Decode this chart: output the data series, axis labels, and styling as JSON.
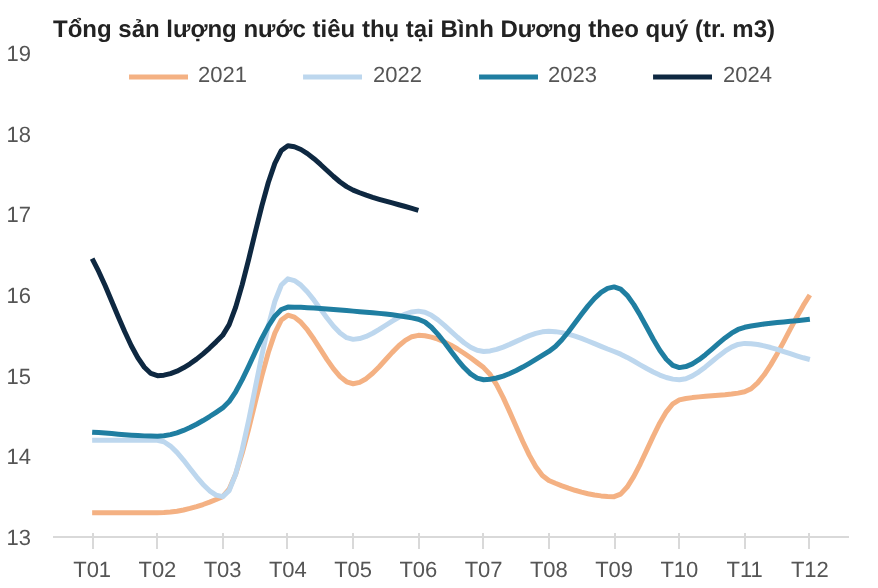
{
  "chart_data": {
    "type": "line",
    "title": "Tổng sản lượng nước tiêu thụ tại Bình Dương theo quý (tr. m3)",
    "categories": [
      "T01",
      "T02",
      "T03",
      "T04",
      "T05",
      "T06",
      "T07",
      "T08",
      "T09",
      "T10",
      "T11",
      "T12"
    ],
    "series": [
      {
        "name": "2021",
        "color": "#f4b183",
        "values": [
          13.3,
          13.3,
          13.5,
          15.75,
          14.9,
          15.5,
          15.1,
          13.7,
          13.5,
          14.7,
          14.8,
          16.0
        ]
      },
      {
        "name": "2022",
        "color": "#bdd7ee",
        "values": [
          14.2,
          14.2,
          13.5,
          16.2,
          15.45,
          15.8,
          15.3,
          15.55,
          15.3,
          14.95,
          15.4,
          15.2
        ]
      },
      {
        "name": "2023",
        "color": "#1f7ea1",
        "values": [
          14.3,
          14.25,
          14.6,
          15.85,
          15.8,
          15.7,
          14.95,
          15.3,
          16.1,
          15.1,
          15.6,
          15.7
        ]
      },
      {
        "name": "2024",
        "color": "#0e2841",
        "values": [
          16.45,
          15.0,
          15.5,
          17.85,
          17.3,
          17.05,
          null,
          null,
          null,
          null,
          null,
          null
        ]
      }
    ],
    "ylim": [
      13,
      19
    ],
    "yticks": [
      13,
      14,
      15,
      16,
      17,
      18,
      19
    ],
    "grid": false,
    "legend": "top",
    "marker": "none",
    "line_style": "solid"
  }
}
